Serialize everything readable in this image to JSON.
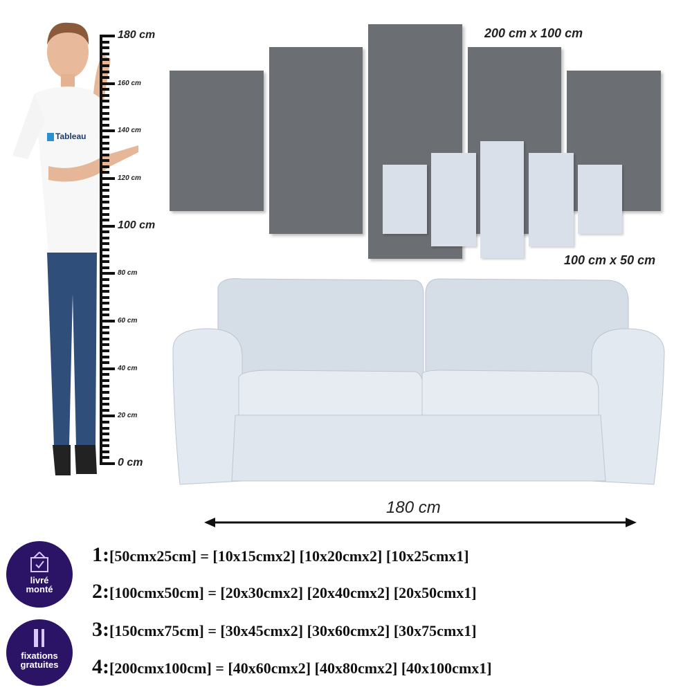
{
  "ruler": {
    "ticks": [
      {
        "value": 180,
        "label": "180 cm",
        "major": true
      },
      {
        "value": 160,
        "label": "160 cm",
        "major": false
      },
      {
        "value": 140,
        "label": "140 cm",
        "major": false
      },
      {
        "value": 120,
        "label": "120 cm",
        "major": false
      },
      {
        "value": 100,
        "label": "100 cm",
        "major": true
      },
      {
        "value": 80,
        "label": "80 cm",
        "major": false
      },
      {
        "value": 60,
        "label": "60 cm",
        "major": false
      },
      {
        "value": 40,
        "label": "40 cm",
        "major": false
      },
      {
        "value": 20,
        "label": "20 cm",
        "major": false
      },
      {
        "value": 0,
        "label": "0 cm",
        "major": true
      }
    ]
  },
  "shirt_logo": "Tableau",
  "large_set_label": "200 cm x 100 cm",
  "small_set_label": "100 cm x 50 cm",
  "sofa_width_label": "180 cm",
  "colors": {
    "large_panel": "#6b6e73",
    "small_panel": "#d9e0ea",
    "badge": "#2b1466",
    "sofa": "#dfe6ee"
  },
  "badges": [
    {
      "icon": "hanging-frame-check-icon",
      "line1": "livré",
      "line2": "monté"
    },
    {
      "icon": "screw-plug-icon",
      "line1": "fixations",
      "line2": "gratuites"
    }
  ],
  "sizes": [
    {
      "num": "1:",
      "text": "[50cmx25cm] = [10x15cmx2] [10x20cmx2] [10x25cmx1]"
    },
    {
      "num": "2:",
      "text": "[100cmx50cm] = [20x30cmx2] [20x40cmx2] [20x50cmx1]"
    },
    {
      "num": "3:",
      "text": "[150cmx75cm] = [30x45cmx2] [30x60cmx2] [30x75cmx1]"
    },
    {
      "num": "4:",
      "text": "[200cmx100cm] = [40x60cmx2] [40x80cmx2] [40x100cmx1]"
    }
  ]
}
